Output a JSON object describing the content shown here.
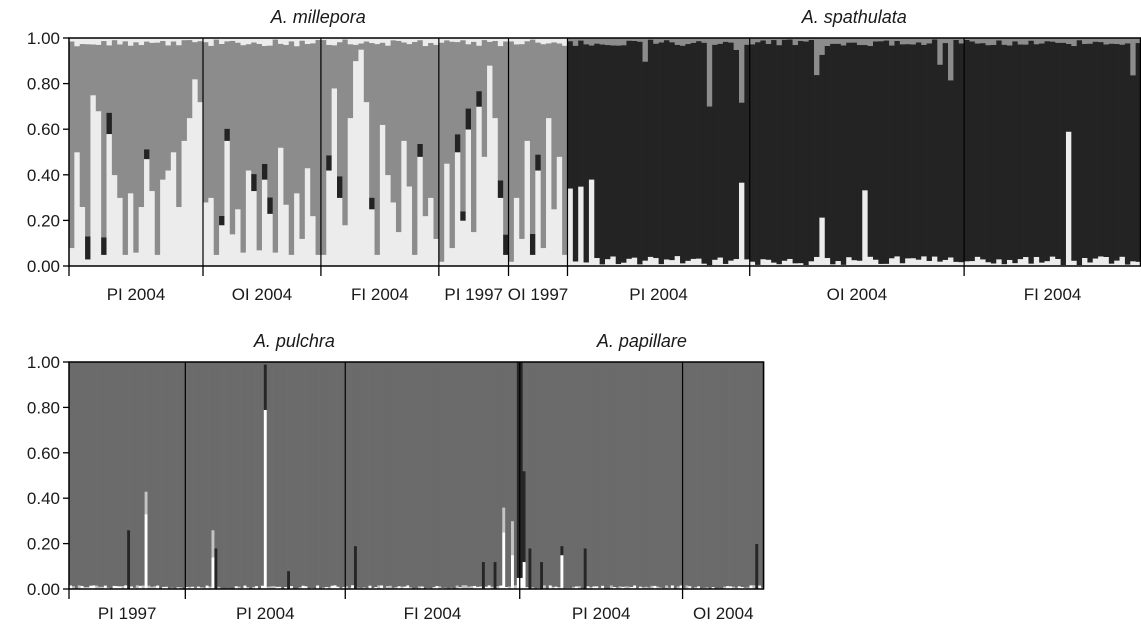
{
  "chart_data": [
    {
      "type": "bar",
      "stacked": true,
      "ylim": [
        0,
        1
      ],
      "yticks": [
        "1.00",
        "0.80",
        "0.60",
        "0.40",
        "0.20",
        "0.00"
      ],
      "colors": {
        "light": "#ececec",
        "mid": "#8c8c8c",
        "dark": "#232323",
        "white": "#ffffff"
      },
      "species": [
        {
          "name": "A. millepora",
          "from": 0,
          "to": 5
        },
        {
          "name": "A. spathulata",
          "from": 5,
          "to": 8
        }
      ],
      "groups": [
        {
          "label": "PI 2004",
          "bars": 25,
          "pattern": "millepora",
          "light": [
            0.08,
            0.5,
            0.26,
            0.03,
            0.75,
            0.68,
            0.05,
            0.58,
            0.4,
            0.3,
            0.05,
            0.32,
            0.06,
            0.26,
            0.47,
            0.33,
            0.05,
            0.38,
            0.42,
            0.5,
            0.26,
            0.55,
            0.65,
            0.82,
            0.72
          ]
        },
        {
          "label": "OI 2004",
          "bars": 22,
          "pattern": "millepora",
          "light": [
            0.28,
            0.3,
            0.05,
            0.18,
            0.55,
            0.14,
            0.25,
            0.06,
            0.42,
            0.33,
            0.07,
            0.38,
            0.23,
            0.06,
            0.52,
            0.27,
            0.05,
            0.32,
            0.12,
            0.43,
            0.22,
            0.05
          ]
        },
        {
          "label": "FI 2004",
          "bars": 22,
          "pattern": "millepora",
          "light": [
            0.05,
            0.42,
            0.78,
            0.3,
            0.18,
            0.65,
            0.9,
            0.95,
            0.72,
            0.25,
            0.05,
            0.62,
            0.4,
            0.28,
            0.15,
            0.55,
            0.35,
            0.05,
            0.48,
            0.22,
            0.3,
            0.12
          ]
        },
        {
          "label": "PI 1997",
          "bars": 13,
          "pattern": "millepora",
          "light": [
            0.02,
            0.45,
            0.08,
            0.5,
            0.2,
            0.6,
            0.15,
            0.7,
            0.48,
            0.88,
            0.65,
            0.3,
            0.05
          ]
        },
        {
          "label": "OI 1997",
          "bars": 11,
          "pattern": "millepora",
          "light": [
            0.02,
            0.3,
            0.12,
            0.55,
            0.05,
            0.42,
            0.08,
            0.65,
            0.25,
            0.48,
            0.05
          ]
        },
        {
          "label": "PI 2004",
          "bars": 34,
          "pattern": "spathulata"
        },
        {
          "label": "OI 2004",
          "bars": 40,
          "pattern": "spathulata"
        },
        {
          "label": "FI 2004",
          "bars": 33,
          "pattern": "spathulata"
        }
      ]
    },
    {
      "type": "bar",
      "stacked": true,
      "ylim": [
        0,
        1
      ],
      "yticks": [
        "1.00",
        "0.80",
        "0.60",
        "0.40",
        "0.20",
        "0.00"
      ],
      "colors": {
        "base": "#6b6b6b",
        "dark": "#262626",
        "light": "#c4c4c4",
        "white": "#ffffff"
      },
      "species": [
        {
          "name": "A. pulchra",
          "from": 0,
          "to": 3
        },
        {
          "name": "A. papillare",
          "from": 3,
          "to": 5
        }
      ],
      "groups": [
        {
          "label": "PI 1997",
          "bars": 40
        },
        {
          "label": "PI 2004",
          "bars": 55
        },
        {
          "label": "FI 2004",
          "bars": 60
        },
        {
          "label": "PI 2004",
          "bars": 56
        },
        {
          "label": "OI 2004",
          "bars": 28
        }
      ],
      "notable_bars": [
        {
          "group": 0,
          "index": 20,
          "dark": 0.26
        },
        {
          "group": 0,
          "index": 26,
          "white": 0.33,
          "light": 0.1
        },
        {
          "group": 1,
          "index": 9,
          "white": 0.14,
          "light": 0.12
        },
        {
          "group": 1,
          "index": 10,
          "dark": 0.18
        },
        {
          "group": 1,
          "index": 27,
          "white": 0.79,
          "dark": 0.2
        },
        {
          "group": 1,
          "index": 35,
          "dark": 0.08
        },
        {
          "group": 2,
          "index": 3,
          "dark": 0.19
        },
        {
          "group": 2,
          "index": 47,
          "dark": 0.12
        },
        {
          "group": 2,
          "index": 51,
          "dark": 0.12
        },
        {
          "group": 2,
          "index": 54,
          "white": 0.25,
          "light": 0.11
        },
        {
          "group": 2,
          "index": 57,
          "white": 0.15,
          "light": 0.15
        },
        {
          "group": 2,
          "index": 59,
          "white": 0.05,
          "dark": 0.95
        },
        {
          "group": 3,
          "index": 0,
          "white": 0.05,
          "dark": 0.95
        },
        {
          "group": 3,
          "index": 1,
          "white": 0.12,
          "dark": 0.4
        },
        {
          "group": 3,
          "index": 3,
          "dark": 0.18
        },
        {
          "group": 3,
          "index": 7,
          "dark": 0.12
        },
        {
          "group": 3,
          "index": 14,
          "white": 0.15,
          "dark": 0.04
        },
        {
          "group": 3,
          "index": 22,
          "dark": 0.18
        },
        {
          "group": 4,
          "index": 25,
          "dark": 0.2
        }
      ]
    }
  ]
}
